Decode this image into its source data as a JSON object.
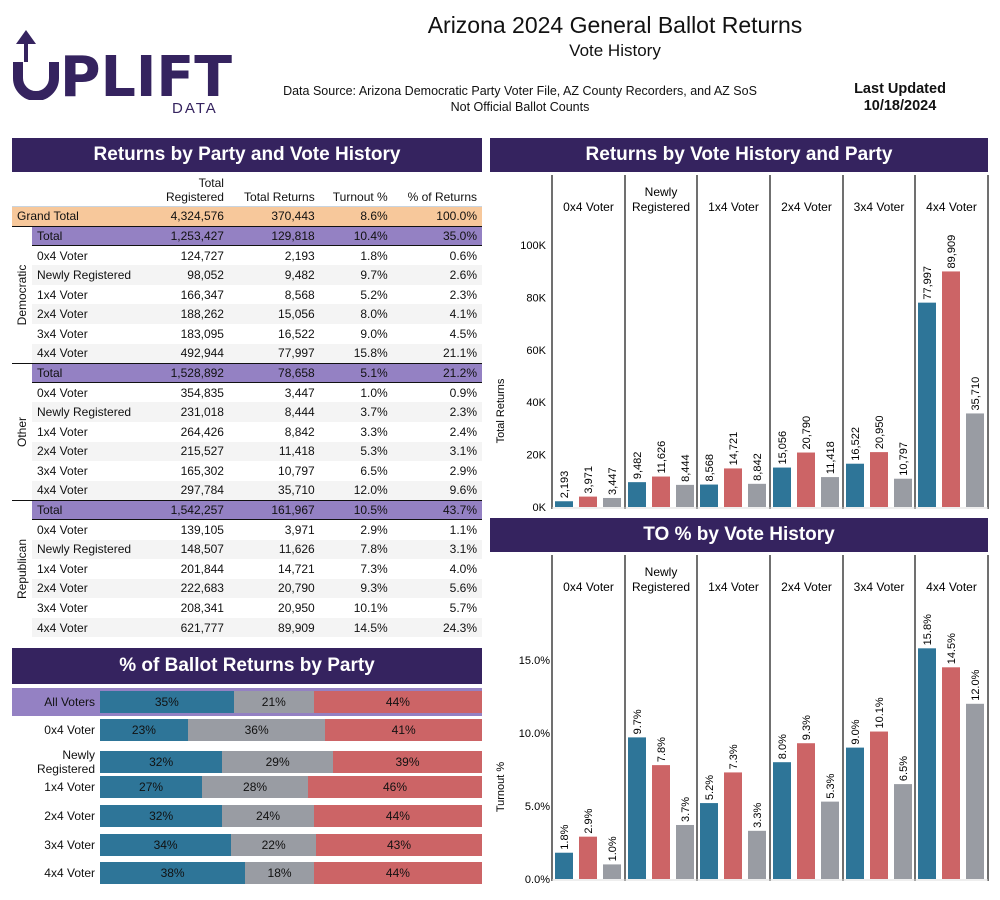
{
  "logo": {
    "text": "UPLIFT",
    "subtext": "DATA",
    "color": "#35235f"
  },
  "header": {
    "title": "Arizona 2024 General Ballot Returns",
    "subtitle": "Vote History",
    "source_line1": "Data Source: Arizona Democratic Party Voter File, AZ County Recorders, and AZ SoS",
    "source_line2": "Not Official Ballot Counts",
    "updated_label": "Last Updated",
    "updated_date": "10/18/2024"
  },
  "colors": {
    "democratic": "#2e7598",
    "republican": "#cc6466",
    "other": "#999ca3",
    "panel_header": "#35235f",
    "total_row": "#9481c3",
    "grand_total_row": "#f7c89b"
  },
  "table": {
    "title": "Returns by Party and Vote History",
    "columns": [
      "Total Registered",
      "Total Returns",
      "Turnout %",
      "% of Returns"
    ],
    "grand_total": {
      "label": "Grand Total",
      "values": [
        "4,324,576",
        "370,443",
        "8.6%",
        "100.0%"
      ]
    },
    "groups": [
      {
        "party": "Democratic",
        "rows": [
          {
            "label": "Total",
            "values": [
              "1,253,427",
              "129,818",
              "10.4%",
              "35.0%"
            ]
          },
          {
            "label": "0x4 Voter",
            "values": [
              "124,727",
              "2,193",
              "1.8%",
              "0.6%"
            ]
          },
          {
            "label": "Newly Registered",
            "values": [
              "98,052",
              "9,482",
              "9.7%",
              "2.6%"
            ]
          },
          {
            "label": "1x4 Voter",
            "values": [
              "166,347",
              "8,568",
              "5.2%",
              "2.3%"
            ]
          },
          {
            "label": "2x4 Voter",
            "values": [
              "188,262",
              "15,056",
              "8.0%",
              "4.1%"
            ]
          },
          {
            "label": "3x4 Voter",
            "values": [
              "183,095",
              "16,522",
              "9.0%",
              "4.5%"
            ]
          },
          {
            "label": "4x4 Voter",
            "values": [
              "492,944",
              "77,997",
              "15.8%",
              "21.1%"
            ]
          }
        ]
      },
      {
        "party": "Other",
        "rows": [
          {
            "label": "Total",
            "values": [
              "1,528,892",
              "78,658",
              "5.1%",
              "21.2%"
            ]
          },
          {
            "label": "0x4 Voter",
            "values": [
              "354,835",
              "3,447",
              "1.0%",
              "0.9%"
            ]
          },
          {
            "label": "Newly Registered",
            "values": [
              "231,018",
              "8,444",
              "3.7%",
              "2.3%"
            ]
          },
          {
            "label": "1x4 Voter",
            "values": [
              "264,426",
              "8,842",
              "3.3%",
              "2.4%"
            ]
          },
          {
            "label": "2x4 Voter",
            "values": [
              "215,527",
              "11,418",
              "5.3%",
              "3.1%"
            ]
          },
          {
            "label": "3x4 Voter",
            "values": [
              "165,302",
              "10,797",
              "6.5%",
              "2.9%"
            ]
          },
          {
            "label": "4x4 Voter",
            "values": [
              "297,784",
              "35,710",
              "12.0%",
              "9.6%"
            ]
          }
        ]
      },
      {
        "party": "Republican",
        "rows": [
          {
            "label": "Total",
            "values": [
              "1,542,257",
              "161,967",
              "10.5%",
              "43.7%"
            ]
          },
          {
            "label": "0x4 Voter",
            "values": [
              "139,105",
              "3,971",
              "2.9%",
              "1.1%"
            ]
          },
          {
            "label": "Newly Registered",
            "values": [
              "148,507",
              "11,626",
              "7.8%",
              "3.1%"
            ]
          },
          {
            "label": "1x4 Voter",
            "values": [
              "201,844",
              "14,721",
              "7.3%",
              "4.0%"
            ]
          },
          {
            "label": "2x4 Voter",
            "values": [
              "222,683",
              "20,790",
              "9.3%",
              "5.6%"
            ]
          },
          {
            "label": "3x4 Voter",
            "values": [
              "208,341",
              "20,950",
              "10.1%",
              "5.7%"
            ]
          },
          {
            "label": "4x4 Voter",
            "values": [
              "621,777",
              "89,909",
              "14.5%",
              "24.3%"
            ]
          }
        ]
      }
    ]
  },
  "chart_data": [
    {
      "type": "bar",
      "title": "% of Ballot Returns by Party",
      "orientation": "horizontal-stacked",
      "unit": "%",
      "categories": [
        "All Voters",
        "0x4 Voter",
        "Newly Registered",
        "1x4 Voter",
        "2x4 Voter",
        "3x4 Voter",
        "4x4 Voter"
      ],
      "series": [
        {
          "party": "democratic",
          "values": [
            35,
            23,
            32,
            27,
            32,
            34,
            38
          ]
        },
        {
          "party": "other",
          "values": [
            21,
            36,
            29,
            28,
            24,
            22,
            18
          ]
        },
        {
          "party": "republican",
          "values": [
            44,
            41,
            39,
            46,
            44,
            43,
            44
          ]
        }
      ]
    },
    {
      "type": "bar",
      "title": "Returns by Vote History and Party",
      "ylabel": "Total Returns",
      "ylim": [
        0,
        100000
      ],
      "yticks": [
        "0K",
        "20K",
        "40K",
        "60K",
        "80K",
        "100K"
      ],
      "ytick_values": [
        0,
        20000,
        40000,
        60000,
        80000,
        100000
      ],
      "categories": [
        "0x4 Voter",
        "Newly Registered",
        "1x4 Voter",
        "2x4 Voter",
        "3x4 Voter",
        "4x4 Voter"
      ],
      "series": [
        {
          "party": "democratic",
          "values": [
            2193,
            9482,
            8568,
            15056,
            16522,
            77997
          ],
          "labels": [
            "2,193",
            "9,482",
            "8,568",
            "15,056",
            "16,522",
            "77,997"
          ]
        },
        {
          "party": "republican",
          "values": [
            3971,
            11626,
            14721,
            20790,
            20950,
            89909
          ],
          "labels": [
            "3,971",
            "11,626",
            "14,721",
            "20,790",
            "20,950",
            "89,909"
          ]
        },
        {
          "party": "other",
          "values": [
            3447,
            8444,
            8842,
            11418,
            10797,
            35710
          ],
          "labels": [
            "3,447",
            "8,444",
            "8,842",
            "11,418",
            "10,797",
            "35,710"
          ]
        }
      ]
    },
    {
      "type": "bar",
      "title": "TO % by Vote History",
      "ylabel": "Turnout %",
      "ylim": [
        0,
        15
      ],
      "yticks": [
        "0.0%",
        "5.0%",
        "10.0%",
        "15.0%"
      ],
      "ytick_values": [
        0,
        5,
        10,
        15
      ],
      "categories": [
        "0x4 Voter",
        "Newly Registered",
        "1x4 Voter",
        "2x4 Voter",
        "3x4 Voter",
        "4x4 Voter"
      ],
      "series": [
        {
          "party": "democratic",
          "values": [
            1.8,
            9.7,
            5.2,
            8.0,
            9.0,
            15.8
          ]
        },
        {
          "party": "republican",
          "values": [
            2.9,
            7.8,
            7.3,
            9.3,
            10.1,
            14.5
          ]
        },
        {
          "party": "other",
          "values": [
            1.0,
            3.7,
            3.3,
            5.3,
            6.5,
            12.0
          ]
        }
      ]
    }
  ]
}
